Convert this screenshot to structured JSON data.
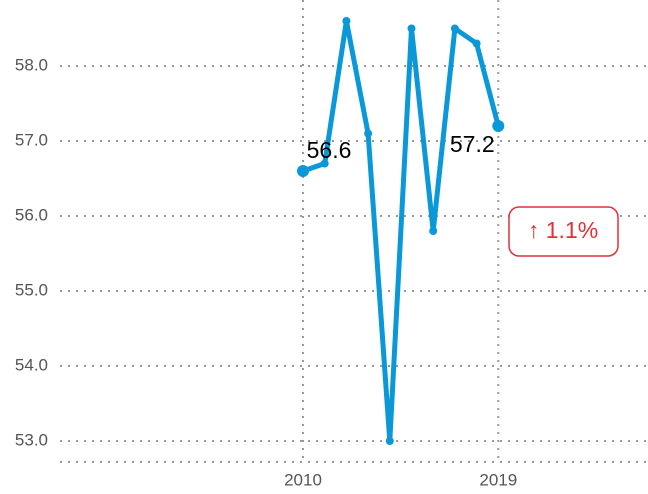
{
  "chart_data": {
    "type": "line",
    "x": [
      2010,
      2011,
      2012,
      2013,
      2014,
      2015,
      2016,
      2017,
      2018,
      2019
    ],
    "series": [
      {
        "color": "#0a98d8",
        "values": [
          56.6,
          56.7,
          58.6,
          57.1,
          53.0,
          58.5,
          55.8,
          58.5,
          58.3,
          57.2
        ]
      }
    ],
    "xlim": [
      1998.8,
      2025.9
    ],
    "xticks": [
      2010,
      2019
    ],
    "ylim": [
      52.72,
      58.88
    ],
    "yticks": [
      {
        "value": 53,
        "label": "53.0"
      },
      {
        "value": 54,
        "label": "54.0"
      },
      {
        "value": 55,
        "label": "55.0"
      },
      {
        "value": 56,
        "label": "56.0"
      },
      {
        "value": 57,
        "label": "57.0"
      },
      {
        "value": 58,
        "label": "58.0"
      }
    ],
    "grid": true,
    "badge": "↑ 1.1%"
  }
}
